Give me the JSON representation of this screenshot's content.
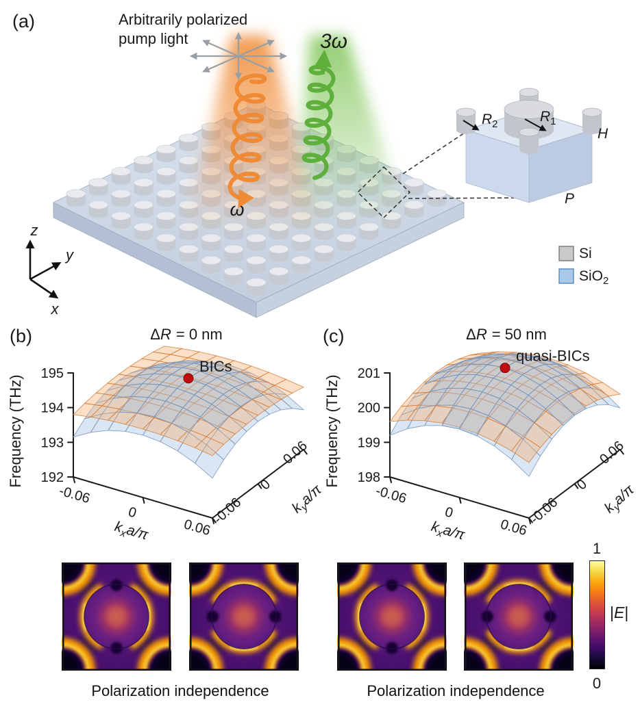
{
  "panel_a": {
    "label": "(a)",
    "pump_line1": "Arbitrarily polarized",
    "pump_line2": "pump light",
    "omega": "ω",
    "three_omega": "3ω",
    "axis": {
      "x": "x",
      "y": "y",
      "z": "z"
    },
    "unit_cell": {
      "R": "R",
      "sub1": "1",
      "sub2": "2",
      "H": "H",
      "P": "P"
    },
    "legend": {
      "si": "Si",
      "sio": "SiO",
      "sio_sub": "2",
      "si_color": "#c9c9c9",
      "sio2_color": "#a9c8ea"
    },
    "lattice": {
      "rows": 9,
      "cols": 9
    }
  },
  "panel_b": {
    "label": "(b)",
    "title_delta": "Δ",
    "title_R": "R",
    "title_rest": "= 0 nm",
    "freq_label": "Frequency (THz)"
  },
  "panel_c": {
    "label": "(c)",
    "title_delta": "Δ",
    "title_R": "R",
    "title_rest": "= 50 nm",
    "freq_label": "Frequency (THz)"
  },
  "k_axis": {
    "k": "k",
    "xsub": "x",
    "ysub": "y",
    "rest": "a/π"
  },
  "captions": {
    "b": "Polarization independence",
    "c": "Polarization independence"
  },
  "colorbar": {
    "max_label": "1",
    "min_label": "0",
    "quantity_pre": "|",
    "quantity_sym": "E",
    "quantity_post": "|",
    "colormap": "inferno",
    "stops": [
      "#000004",
      "#160b39",
      "#420a68",
      "#6a176e",
      "#932667",
      "#bc3754",
      "#dd513a",
      "#f37819",
      "#fca50a",
      "#f6d746",
      "#fcffa4"
    ]
  },
  "chart_data": [
    {
      "type": "surface3d",
      "panel": "b",
      "title": "ΔR = 0 nm",
      "zlabel": "Frequency (THz)",
      "zlim": [
        192,
        195
      ],
      "zticks": [
        192,
        193,
        194,
        195
      ],
      "xlabel": "kxa/π",
      "xticks": [
        -0.06,
        0,
        0.06
      ],
      "xlim": [
        -0.06,
        0.06
      ],
      "ylabel": "kya/π",
      "yticks": [
        -0.06,
        0,
        0.06
      ],
      "ylim": [
        -0.06,
        0.06
      ],
      "series": [
        {
          "name": "blue band (domed)",
          "color": "#a7c4e2",
          "center_THz": 194.45,
          "corner_THz": 193.15
        },
        {
          "name": "orange band (flat)",
          "color": "#f3b287",
          "center_THz": 194.15,
          "corner_THz": 193.8
        }
      ],
      "marker": {
        "label": "BICs",
        "kx": 0,
        "ky": 0,
        "freq_THz": 194.5,
        "color": "#c00d0d"
      }
    },
    {
      "type": "surface3d",
      "panel": "c",
      "title": "ΔR = 50 nm",
      "zlabel": "Frequency (THz)",
      "zlim": [
        198,
        201
      ],
      "zticks": [
        198,
        199,
        200,
        201
      ],
      "xlabel": "kxa/π",
      "xticks": [
        -0.06,
        0,
        0.06
      ],
      "xlim": [
        -0.06,
        0.06
      ],
      "ylabel": "kya/π",
      "yticks": [
        -0.06,
        0,
        0.06
      ],
      "ylim": [
        -0.06,
        0.06
      ],
      "series": [
        {
          "name": "blue band (domed)",
          "color": "#a7c4e2",
          "center_THz": 200.75,
          "corner_THz": 199.2
        },
        {
          "name": "orange band (flat)",
          "color": "#f3b287",
          "center_THz": 200.45,
          "corner_THz": 199.6
        }
      ],
      "marker": {
        "label": "quasi-BICs",
        "kx": 0,
        "ky": 0,
        "freq_THz": 200.8,
        "color": "#c00d0d"
      }
    },
    {
      "type": "heatmap",
      "panel": "b",
      "index": 1,
      "quantity": "|E| normalized field",
      "orientation": "horizontal",
      "colormap": "inferno",
      "scale": [
        0,
        1
      ]
    },
    {
      "type": "heatmap",
      "panel": "b",
      "index": 2,
      "quantity": "|E| normalized field",
      "orientation": "vertical",
      "colormap": "inferno",
      "scale": [
        0,
        1
      ]
    },
    {
      "type": "heatmap",
      "panel": "c",
      "index": 1,
      "quantity": "|E| normalized field",
      "orientation": "horizontal",
      "colormap": "inferno",
      "scale": [
        0,
        1
      ]
    },
    {
      "type": "heatmap",
      "panel": "c",
      "index": 2,
      "quantity": "|E| normalized field",
      "orientation": "vertical",
      "colormap": "inferno",
      "scale": [
        0,
        1
      ]
    }
  ]
}
